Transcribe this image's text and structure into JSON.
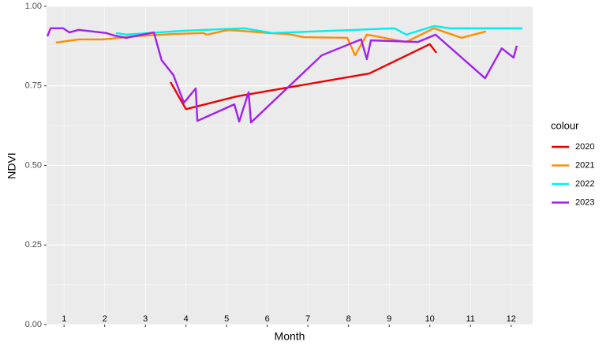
{
  "chart_data": {
    "type": "line",
    "x_label": "Month",
    "y_label": "NDVI",
    "legend_title": "colour",
    "legend_position": "right",
    "grid": true,
    "xlim": [
      1.07,
      13.03
    ],
    "ylim": [
      0,
      1
    ],
    "xticks": [
      {
        "value": 1.5,
        "label": "1"
      },
      {
        "value": 2.5,
        "label": "2"
      },
      {
        "value": 3.5,
        "label": "3"
      },
      {
        "value": 4.5,
        "label": "4"
      },
      {
        "value": 5.5,
        "label": "5"
      },
      {
        "value": 6.5,
        "label": "6"
      },
      {
        "value": 7.5,
        "label": "7"
      },
      {
        "value": 8.5,
        "label": "8"
      },
      {
        "value": 9.5,
        "label": "9"
      },
      {
        "value": 10.5,
        "label": "10"
      },
      {
        "value": 11.5,
        "label": "11"
      },
      {
        "value": 12.5,
        "label": "12"
      }
    ],
    "yticks": [
      {
        "value": 0,
        "label": "0.00"
      },
      {
        "value": 0.25,
        "label": "0.25"
      },
      {
        "value": 0.5,
        "label": "0.50"
      },
      {
        "value": 0.75,
        "label": "0.75"
      },
      {
        "value": 1,
        "label": "1.00"
      }
    ],
    "series": [
      {
        "name": "2020",
        "color": "#ee0000",
        "x": [
          4.12,
          4.5,
          5.75,
          9.01,
          10.5,
          10.66
        ],
        "values": [
          0.762,
          0.677,
          0.717,
          0.789,
          0.881,
          0.854
        ]
      },
      {
        "name": "2021",
        "color": "#ff8c00",
        "x": [
          1.3,
          1.86,
          2.45,
          3.22,
          4.19,
          4.93,
          5.01,
          5.55,
          6.52,
          7.01,
          7.4,
          8.47,
          8.66,
          8.95,
          9.92,
          10.6,
          11.28,
          11.88
        ],
        "values": [
          0.886,
          0.896,
          0.896,
          0.906,
          0.913,
          0.916,
          0.911,
          0.926,
          0.916,
          0.913,
          0.903,
          0.901,
          0.846,
          0.911,
          0.888,
          0.931,
          0.901,
          0.921
        ]
      },
      {
        "name": "2022",
        "color": "#00eeee",
        "x": [
          2.78,
          3.03,
          4.39,
          5.94,
          6.62,
          8.66,
          9.63,
          9.92,
          10.6,
          10.99,
          12.78
        ],
        "values": [
          0.916,
          0.911,
          0.923,
          0.931,
          0.916,
          0.926,
          0.931,
          0.911,
          0.938,
          0.931,
          0.931
        ]
      },
      {
        "name": "2023",
        "color": "#a020f0",
        "x": [
          1.09,
          1.17,
          1.48,
          1.63,
          1.86,
          2.54,
          2.74,
          3.03,
          3.71,
          3.9,
          4.19,
          4.45,
          4.74,
          4.78,
          5.69,
          5.81,
          6.04,
          6.1,
          7.84,
          8.81,
          8.95,
          9.05,
          10.21,
          10.64,
          11.86,
          12.27,
          12.56,
          12.64
        ],
        "values": [
          0.906,
          0.931,
          0.931,
          0.918,
          0.926,
          0.916,
          0.908,
          0.901,
          0.918,
          0.831,
          0.784,
          0.697,
          0.742,
          0.64,
          0.692,
          0.638,
          0.73,
          0.635,
          0.846,
          0.896,
          0.834,
          0.893,
          0.888,
          0.911,
          0.774,
          0.868,
          0.839,
          0.876
        ]
      }
    ]
  }
}
